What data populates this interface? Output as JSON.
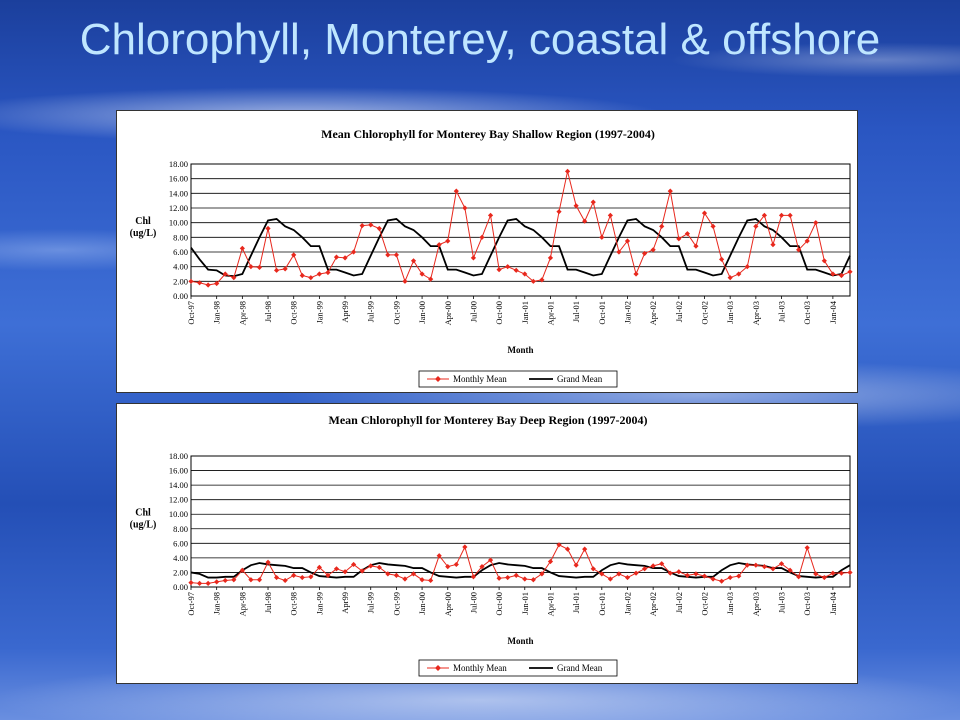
{
  "slide": {
    "title": "Chlorophyll, Monterey, coastal & offshore"
  },
  "colors": {
    "monthly": "#e8281d",
    "grand": "#000000",
    "grid": "#000000"
  },
  "chart_data": [
    {
      "type": "line",
      "title": "Mean Chlorophyll for Monterey Bay Shallow Region (1997-2004)",
      "xlabel": "Month",
      "ylabel": [
        "Chl",
        "(ug/L)"
      ],
      "ylim": [
        0,
        18
      ],
      "yticks": [
        "0.00",
        "2.00",
        "4.00",
        "6.00",
        "8.00",
        "10.00",
        "12.00",
        "14.00",
        "16.00",
        "18.00"
      ],
      "x_tick_labels": [
        "Oct-97",
        "Jan-98",
        "Apr-98",
        "Jul-98",
        "Oct-98",
        "Jan-99",
        "Apr99",
        "Jul-99",
        "Oct-99",
        "Jan-00",
        "Apr-00",
        "Jul-00",
        "Oct-00",
        "Jan-01",
        "Apr-01",
        "Jul-01",
        "Oct-01",
        "Jan-02",
        "Apr-02",
        "Jul-02",
        "Oct-02",
        "Jan-03",
        "Apr-03",
        "Jul-03",
        "Oct-03",
        "Jan-04"
      ],
      "x_range": [
        "Oct-97",
        "Mar-04"
      ],
      "grid": true,
      "legend_position": "bottom-right",
      "series": [
        {
          "name": "Monthly Mean",
          "marker": "diamond",
          "values": [
            2.0,
            1.8,
            1.5,
            1.7,
            3.0,
            2.5,
            6.5,
            4.0,
            3.9,
            9.2,
            3.5,
            3.7,
            5.6,
            2.8,
            2.5,
            3.0,
            3.2,
            5.3,
            5.2,
            6.0,
            9.6,
            9.7,
            9.2,
            5.6,
            5.6,
            2.0,
            4.8,
            3.0,
            2.3,
            7.0,
            7.5,
            14.3,
            12.0,
            5.2,
            8.0,
            11.0,
            3.6,
            4.0,
            3.5,
            3.0,
            2.0,
            2.2,
            5.2,
            11.5,
            17.0,
            12.3,
            10.2,
            12.8,
            8.0,
            11.0,
            6.0,
            7.5,
            3.0,
            5.8,
            6.3,
            9.5,
            14.3,
            7.8,
            8.5,
            6.8,
            11.3,
            9.5,
            5.0,
            2.5,
            3.0,
            4.0,
            9.5,
            11.0,
            7.0,
            11.0,
            11.0,
            6.3,
            7.5,
            10.0,
            4.8,
            3.0,
            2.8,
            3.3
          ]
        },
        {
          "name": "Grand Mean",
          "values": [
            6.6,
            5.0,
            3.6,
            3.5,
            2.8,
            2.7,
            3.0,
            5.5,
            8.0,
            10.3,
            10.5,
            9.5,
            9.0,
            8.0,
            6.8,
            6.8,
            3.6,
            3.6,
            3.2,
            2.8,
            3.0,
            5.5,
            8.0,
            10.3,
            10.5,
            9.5,
            9.0,
            8.0,
            6.8,
            6.8,
            3.6,
            3.6,
            3.2,
            2.8,
            3.0,
            5.5,
            8.0,
            10.3,
            10.5,
            9.5,
            9.0,
            8.0,
            6.8,
            6.8,
            3.6,
            3.6,
            3.2,
            2.8,
            3.0,
            5.5,
            8.0,
            10.3,
            10.5,
            9.5,
            9.0,
            8.0,
            6.8,
            6.8,
            3.6,
            3.6,
            3.2,
            2.8,
            3.0,
            5.5,
            8.0,
            10.3,
            10.5,
            9.5,
            9.0,
            8.0,
            6.8,
            6.8,
            3.6,
            3.6,
            3.2,
            2.8,
            3.0,
            5.5
          ]
        }
      ]
    },
    {
      "type": "line",
      "title": "Mean Chlorophyll for Monterey Bay Deep Region (1997-2004)",
      "xlabel": "Month",
      "ylabel": [
        "Chl",
        "(ug/L)"
      ],
      "ylim": [
        0,
        18
      ],
      "yticks": [
        "0.00",
        "2.00",
        "4.00",
        "6.00",
        "8.00",
        "10.00",
        "12.00",
        "14.00",
        "16.00",
        "18.00"
      ],
      "x_tick_labels": [
        "Oct-97",
        "Jan-98",
        "Apr-98",
        "Jul-98",
        "Oct-98",
        "Jan-99",
        "Apr99",
        "Jul-99",
        "Oct-99",
        "Jan-00",
        "Apr-00",
        "Jul-00",
        "Oct-00",
        "Jan-01",
        "Apr-01",
        "Jul-01",
        "Oct-01",
        "Jan-02",
        "Apr-02",
        "Jul-02",
        "Oct-02",
        "Jan-03",
        "Apr-03",
        "Jul-03",
        "Oct-03",
        "Jan-04"
      ],
      "x_range": [
        "Oct-97",
        "Mar-04"
      ],
      "grid": true,
      "legend_position": "bottom-right",
      "series": [
        {
          "name": "Monthly Mean",
          "marker": "diamond",
          "values": [
            0.6,
            0.5,
            0.5,
            0.7,
            0.9,
            1.0,
            2.3,
            1.0,
            1.0,
            3.4,
            1.3,
            0.9,
            1.6,
            1.3,
            1.4,
            2.7,
            1.6,
            2.5,
            2.1,
            3.1,
            2.2,
            2.9,
            2.7,
            1.8,
            1.6,
            1.1,
            1.8,
            1.0,
            0.9,
            4.3,
            2.8,
            3.1,
            5.5,
            1.4,
            2.8,
            3.7,
            1.2,
            1.3,
            1.6,
            1.1,
            1.0,
            1.8,
            3.5,
            5.8,
            5.2,
            3.0,
            5.2,
            2.5,
            1.8,
            1.1,
            1.8,
            1.3,
            1.9,
            2.5,
            2.9,
            3.2,
            1.9,
            2.1,
            1.6,
            1.8,
            1.5,
            1.1,
            0.8,
            1.3,
            1.5,
            3.0,
            3.0,
            2.8,
            2.5,
            3.2,
            2.3,
            1.4,
            5.4,
            1.8,
            1.3,
            1.9,
            1.9,
            2.0
          ]
        },
        {
          "name": "Grand Mean",
          "values": [
            2.0,
            1.8,
            1.3,
            1.3,
            1.4,
            1.4,
            2.3,
            3.0,
            3.3,
            3.1,
            3.0,
            2.9,
            2.6,
            2.6,
            2.0,
            1.5,
            1.4,
            1.3,
            1.4,
            1.4,
            2.3,
            3.0,
            3.3,
            3.1,
            3.0,
            2.9,
            2.6,
            2.6,
            2.0,
            1.5,
            1.4,
            1.3,
            1.4,
            1.4,
            2.3,
            3.0,
            3.3,
            3.1,
            3.0,
            2.9,
            2.6,
            2.6,
            2.0,
            1.5,
            1.4,
            1.3,
            1.4,
            1.4,
            2.3,
            3.0,
            3.3,
            3.1,
            3.0,
            2.9,
            2.6,
            2.6,
            2.0,
            1.5,
            1.4,
            1.3,
            1.4,
            1.4,
            2.3,
            3.0,
            3.3,
            3.1,
            3.0,
            2.9,
            2.6,
            2.6,
            2.0,
            1.5,
            1.4,
            1.3,
            1.4,
            1.4,
            2.3,
            3.0
          ]
        }
      ]
    }
  ]
}
